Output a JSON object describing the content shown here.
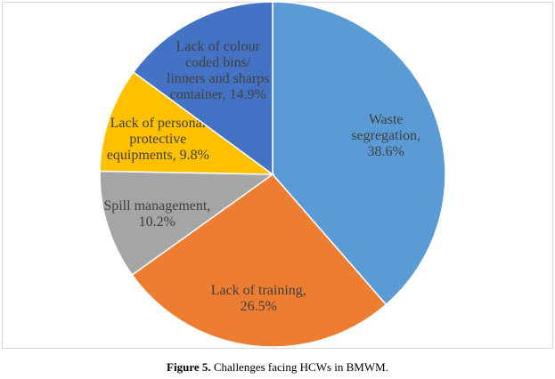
{
  "chart_data": {
    "type": "pie",
    "categories": [
      "Waste segregation,",
      "Lack of training,",
      "Spill management,",
      "Lack of personal protective equipments,",
      "Lack of colour coded bins/ linners and sharps container,"
    ],
    "values": [
      38.6,
      26.5,
      10.2,
      9.8,
      14.9
    ],
    "value_labels": [
      "38.6%",
      "26.5%",
      "10.2%",
      "9.8%",
      "14.9%"
    ],
    "colors": [
      "#5b9bd5",
      "#ed7d31",
      "#a5a5a5",
      "#ffc000",
      "#4472c4"
    ]
  },
  "caption": {
    "label": "Figure 5.",
    "text": "Challenges facing HCWs in BMWM."
  }
}
